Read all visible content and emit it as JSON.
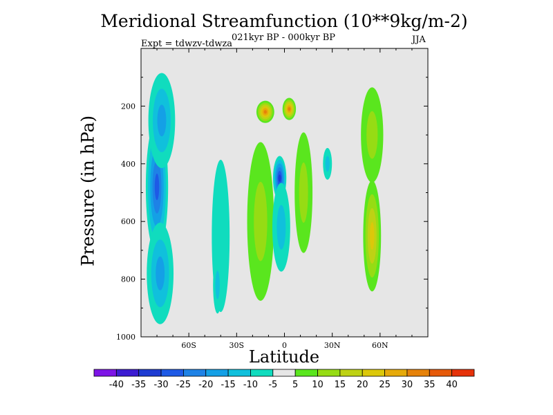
{
  "header": {
    "title": "Meridional Streamfunction (10**9kg/m-2)",
    "subtitle": "021kyr BP - 000kyr BP",
    "experiment": "Expt = tdwzv-tdwza",
    "season": "JJA"
  },
  "colors": {
    "background_panel": "#e6e6e6",
    "contour_levels": [
      {
        "min": -45,
        "max": -40,
        "color": "#7d14e6"
      },
      {
        "min": -40,
        "max": -35,
        "color": "#3c1cd2"
      },
      {
        "min": -35,
        "max": -30,
        "color": "#1e3cd2"
      },
      {
        "min": -30,
        "max": -25,
        "color": "#1e5ae6"
      },
      {
        "min": -25,
        "max": -20,
        "color": "#1e82e6"
      },
      {
        "min": -20,
        "max": -15,
        "color": "#14a0e6"
      },
      {
        "min": -15,
        "max": -10,
        "color": "#10c0dc"
      },
      {
        "min": -10,
        "max": -5,
        "color": "#10dcbe"
      },
      {
        "min": -5,
        "max": 5,
        "color": "#e6e6e6"
      },
      {
        "min": 5,
        "max": 10,
        "color": "#5ae61e"
      },
      {
        "min": 10,
        "max": 15,
        "color": "#96dc14"
      },
      {
        "min": 15,
        "max": 20,
        "color": "#bed214"
      },
      {
        "min": 20,
        "max": 25,
        "color": "#dcc80a"
      },
      {
        "min": 25,
        "max": 30,
        "color": "#e6aa0a"
      },
      {
        "min": 30,
        "max": 35,
        "color": "#e6820a"
      },
      {
        "min": 35,
        "max": 40,
        "color": "#e65a0a"
      },
      {
        "min": 40,
        "max": 45,
        "color": "#e6320a"
      }
    ]
  },
  "chart_data": {
    "type": "heatmap",
    "title": "Meridional Streamfunction (10**9kg/m-2)",
    "subtitle": "021kyr BP - 000kyr BP",
    "xlabel": "Latitude",
    "ylabel": "Pressure (in hPa)",
    "xlim": [
      -90,
      90
    ],
    "ylim": [
      1000,
      0
    ],
    "xticks": [
      -60,
      -30,
      0,
      30,
      60
    ],
    "xtick_labels": [
      "60S",
      "30S",
      "0",
      "30N",
      "60N"
    ],
    "yticks": [
      200,
      400,
      600,
      800,
      1000
    ],
    "ytick_labels": [
      "200",
      "400",
      "600",
      "800",
      "1000"
    ],
    "colorbar_labels": [
      "-40",
      "-35",
      "-30",
      "-25",
      "-20",
      "-15",
      "-10",
      "-5",
      "5",
      "10",
      "15",
      "20",
      "25",
      "30",
      "35",
      "40"
    ],
    "features": [
      {
        "lat": -80,
        "pressure": 480,
        "value": -28,
        "lat_width": 5,
        "p_height": 420
      },
      {
        "lat": -77,
        "pressure": 250,
        "value": -18,
        "lat_width": 6,
        "p_height": 300
      },
      {
        "lat": -78,
        "pressure": 780,
        "value": -15,
        "lat_width": 6,
        "p_height": 320
      },
      {
        "lat": -40,
        "pressure": 650,
        "value": -8,
        "lat_width": 4,
        "p_height": 480
      },
      {
        "lat": -42,
        "pressure": 820,
        "value": -12,
        "lat_width": 2,
        "p_height": 180
      },
      {
        "lat": -12,
        "pressure": 220,
        "value": 33,
        "lat_width": 4,
        "p_height": 70
      },
      {
        "lat": 3,
        "pressure": 210,
        "value": 32,
        "lat_width": 3,
        "p_height": 70
      },
      {
        "lat": -15,
        "pressure": 600,
        "value": 12,
        "lat_width": 6,
        "p_height": 500
      },
      {
        "lat": -3,
        "pressure": 450,
        "value": -30,
        "lat_width": 3,
        "p_height": 140
      },
      {
        "lat": -2,
        "pressure": 620,
        "value": -12,
        "lat_width": 4,
        "p_height": 280
      },
      {
        "lat": 12,
        "pressure": 500,
        "value": 12,
        "lat_width": 4,
        "p_height": 380
      },
      {
        "lat": 27,
        "pressure": 400,
        "value": -12,
        "lat_width": 2,
        "p_height": 100
      },
      {
        "lat": 55,
        "pressure": 650,
        "value": 20,
        "lat_width": 4,
        "p_height": 350
      },
      {
        "lat": 55,
        "pressure": 300,
        "value": 10,
        "lat_width": 5,
        "p_height": 300
      }
    ]
  },
  "axes": {
    "xlabel": "Latitude",
    "ylabel": "Pressure (in hPa)"
  }
}
